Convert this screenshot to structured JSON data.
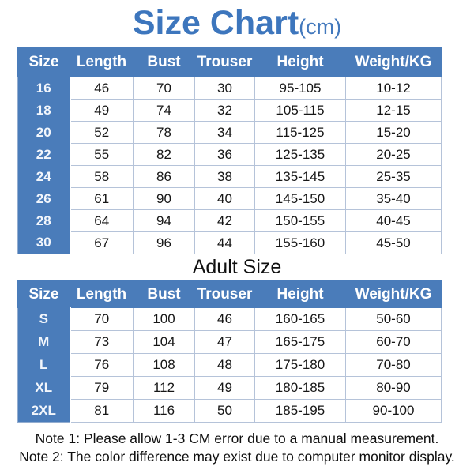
{
  "title": {
    "main": "Size Chart",
    "unit": "(cm)"
  },
  "colors": {
    "title_blue": "#3d76bd",
    "header_blue": "#4a7cba",
    "cell_border": "#b5c3d9",
    "text_black": "#161616"
  },
  "kids_table": {
    "headers": [
      "Size",
      "Length",
      "Bust",
      "Trouser",
      "Height",
      "Weight/KG"
    ],
    "rows": [
      [
        "16",
        "46",
        "70",
        "30",
        "95-105",
        "10-12"
      ],
      [
        "18",
        "49",
        "74",
        "32",
        "105-115",
        "12-15"
      ],
      [
        "20",
        "52",
        "78",
        "34",
        "115-125",
        "15-20"
      ],
      [
        "22",
        "55",
        "82",
        "36",
        "125-135",
        "20-25"
      ],
      [
        "24",
        "58",
        "86",
        "38",
        "135-145",
        "25-35"
      ],
      [
        "26",
        "61",
        "90",
        "40",
        "145-150",
        "35-40"
      ],
      [
        "28",
        "64",
        "94",
        "42",
        "150-155",
        "40-45"
      ],
      [
        "30",
        "67",
        "96",
        "44",
        "155-160",
        "45-50"
      ]
    ]
  },
  "adult_section": {
    "heading": "Adult Size"
  },
  "adult_table": {
    "headers": [
      "Size",
      "Length",
      "Bust",
      "Trouser",
      "Height",
      "Weight/KG"
    ],
    "rows": [
      [
        "S",
        "70",
        "100",
        "46",
        "160-165",
        "50-60"
      ],
      [
        "M",
        "73",
        "104",
        "47",
        "165-175",
        "60-70"
      ],
      [
        "L",
        "76",
        "108",
        "48",
        "175-180",
        "70-80"
      ],
      [
        "XL",
        "79",
        "112",
        "49",
        "180-185",
        "80-90"
      ],
      [
        "2XL",
        "81",
        "116",
        "50",
        "185-195",
        "90-100"
      ]
    ]
  },
  "notes": [
    "Note 1: Please allow 1-3 CM error due to a manual measurement.",
    "Note 2: The color difference may exist due to computer monitor display."
  ]
}
